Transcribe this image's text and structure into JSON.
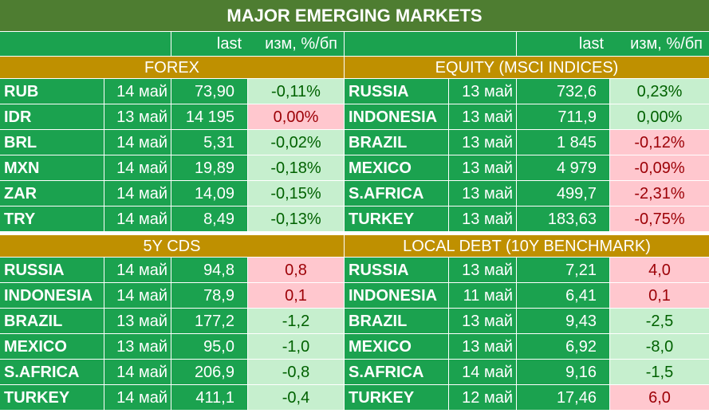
{
  "title": "MAJOR   EMERGING MARKETS",
  "headers": {
    "last": "last",
    "change": "изм, %/бп"
  },
  "sections": [
    {
      "name": "FOREX",
      "rows": [
        {
          "name": "RUB",
          "date": "14 май",
          "last": "73,90",
          "change": "-0,11%",
          "tone": "pos"
        },
        {
          "name": "IDR",
          "date": "13 май",
          "last": "14 195",
          "change": "0,00%",
          "tone": "neg"
        },
        {
          "name": "BRL",
          "date": "14 май",
          "last": "5,31",
          "change": "-0,02%",
          "tone": "pos"
        },
        {
          "name": "MXN",
          "date": "14 май",
          "last": "19,89",
          "change": "-0,18%",
          "tone": "pos"
        },
        {
          "name": "ZAR",
          "date": "14 май",
          "last": "14,09",
          "change": "-0,15%",
          "tone": "pos"
        },
        {
          "name": "TRY",
          "date": "14 май",
          "last": "8,49",
          "change": "-0,13%",
          "tone": "pos"
        }
      ]
    },
    {
      "name": "EQUITY (MSCI INDICES)",
      "rows": [
        {
          "name": "RUSSIA",
          "date": "13 май",
          "last": "732,6",
          "change": "0,23%",
          "tone": "pos"
        },
        {
          "name": "INDONESIA",
          "date": "13 май",
          "last": "711,9",
          "change": "0,00%",
          "tone": "pos"
        },
        {
          "name": "BRAZIL",
          "date": "13 май",
          "last": "1 845",
          "change": "-0,12%",
          "tone": "neg"
        },
        {
          "name": "MEXICO",
          "date": "13 май",
          "last": "4 979",
          "change": "-0,09%",
          "tone": "neg"
        },
        {
          "name": "S.AFRICA",
          "date": "13 май",
          "last": "499,7",
          "change": "-2,31%",
          "tone": "neg"
        },
        {
          "name": "TURKEY",
          "date": "13 май",
          "last": "183,63",
          "change": "-0,75%",
          "tone": "neg"
        }
      ]
    },
    {
      "name": "5Y CDS",
      "rows": [
        {
          "name": "RUSSIA",
          "date": "14 май",
          "last": "94,8",
          "change": "0,8",
          "tone": "neg"
        },
        {
          "name": "INDONESIA",
          "date": "14 май",
          "last": "78,9",
          "change": "0,1",
          "tone": "neg"
        },
        {
          "name": "BRAZIL",
          "date": "13 май",
          "last": "177,2",
          "change": "-1,2",
          "tone": "pos"
        },
        {
          "name": "MEXICO",
          "date": "13 май",
          "last": "95,0",
          "change": "-1,0",
          "tone": "pos"
        },
        {
          "name": "S.AFRICA",
          "date": "14 май",
          "last": "206,9",
          "change": "-0,8",
          "tone": "pos"
        },
        {
          "name": "TURKEY",
          "date": "14 май",
          "last": "411,1",
          "change": "-0,4",
          "tone": "pos"
        }
      ]
    },
    {
      "name": "LOCAL DEBT (10Y BENCHMARK)",
      "rows": [
        {
          "name": "RUSSIA",
          "date": "13 май",
          "last": "7,21",
          "change": "4,0",
          "tone": "neg"
        },
        {
          "name": "INDONESIA",
          "date": "11 май",
          "last": "6,41",
          "change": "0,1",
          "tone": "neg"
        },
        {
          "name": "BRAZIL",
          "date": "13 май",
          "last": "9,43",
          "change": "-2,5",
          "tone": "pos"
        },
        {
          "name": "MEXICO",
          "date": "13 май",
          "last": "6,92",
          "change": "-8,0",
          "tone": "pos"
        },
        {
          "name": "S.AFRICA",
          "date": "14 май",
          "last": "9,16",
          "change": "-1,5",
          "tone": "pos"
        },
        {
          "name": "TURKEY",
          "date": "12 май",
          "last": "17,46",
          "change": "6,0",
          "tone": "neg"
        }
      ]
    }
  ]
}
